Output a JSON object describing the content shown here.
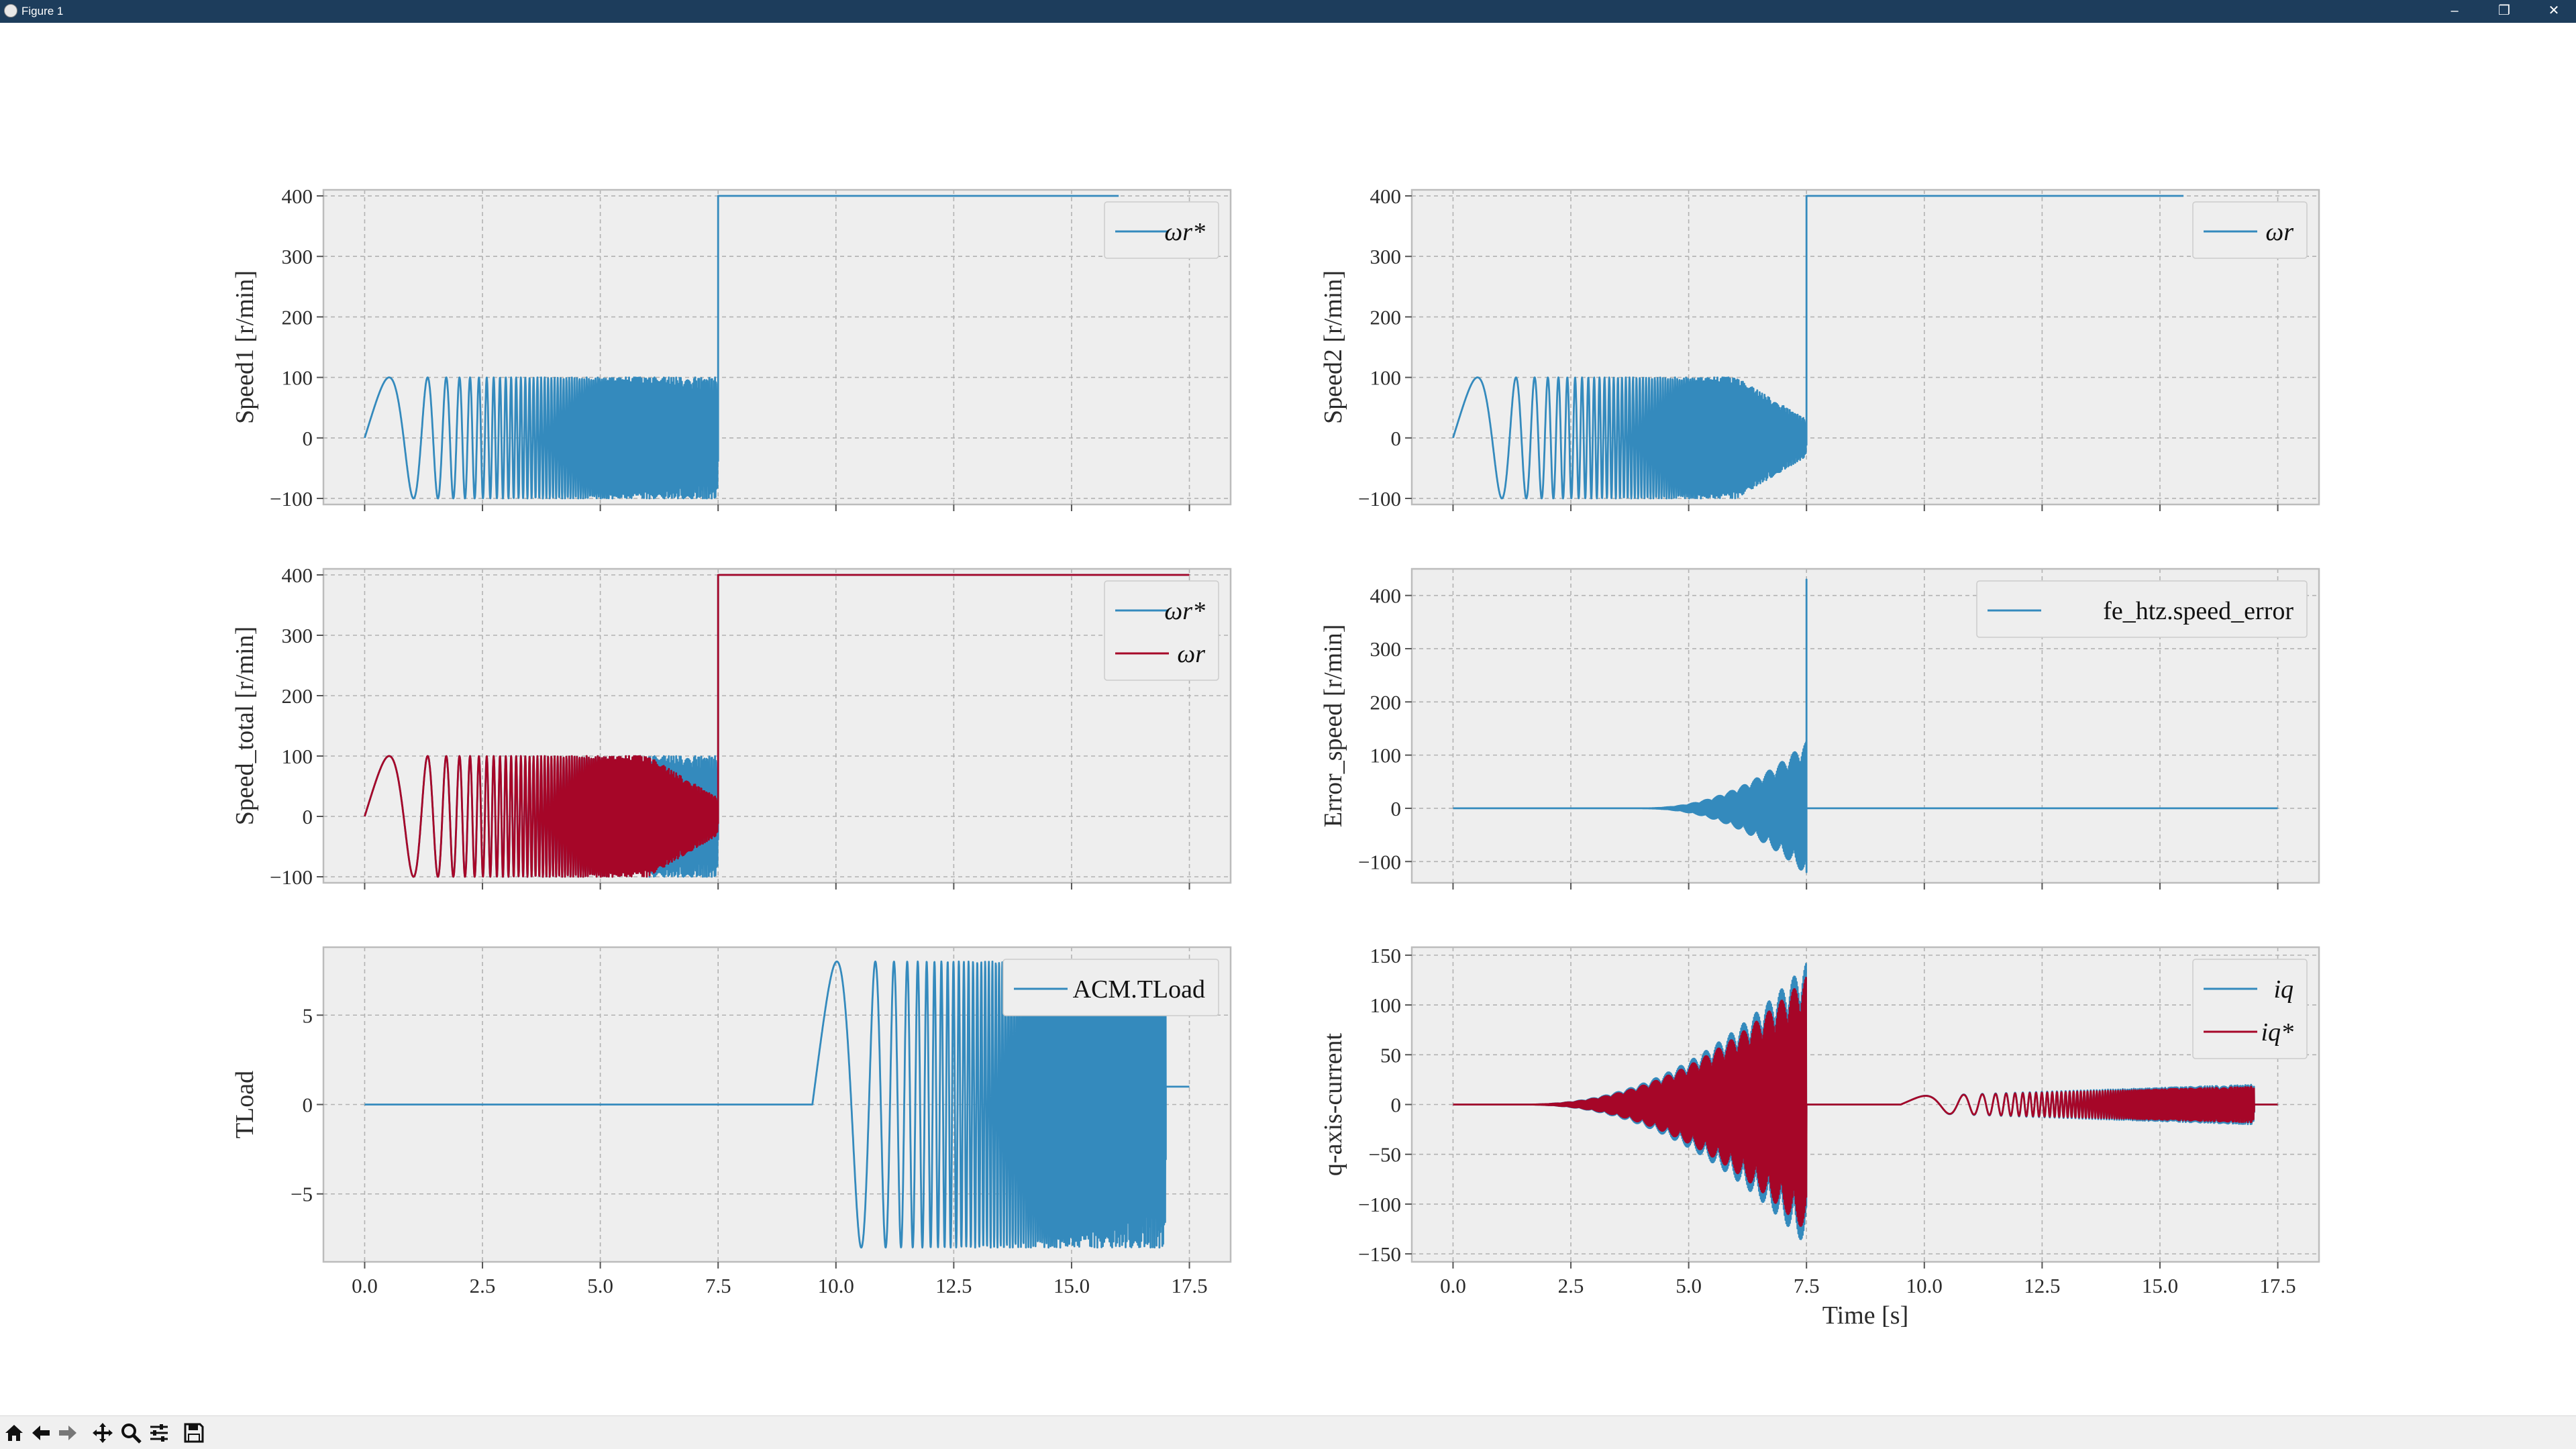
{
  "window": {
    "title": "Figure 1",
    "controls": [
      "minimize",
      "restore",
      "close"
    ]
  },
  "toolbar": {
    "buttons": [
      "home-icon",
      "back-icon",
      "forward-icon",
      "pan-icon",
      "zoom-icon",
      "configure-subplots-icon",
      "save-icon"
    ]
  },
  "colors": {
    "blue": "#348abd",
    "red": "#a60628",
    "axes_bg": "#eeeeee"
  },
  "chart_data": [
    {
      "id": "speed1",
      "type": "line",
      "title": "",
      "xlabel": "",
      "ylabel": "Speed1 [r/min]",
      "xlim": [
        -0.875,
        18.375
      ],
      "ylim": [
        -110,
        410
      ],
      "xticks": [
        0.0,
        2.5,
        5.0,
        7.5,
        10.0,
        12.5,
        15.0,
        17.5
      ],
      "xticklabels_visible": false,
      "yticks": [
        -100,
        0,
        100,
        200,
        300,
        400
      ],
      "yticklabels": [
        "−100",
        "0",
        "100",
        "200",
        "300",
        "400"
      ],
      "grid": true,
      "legend_position": "top-right",
      "series": [
        {
          "name": "ωr*",
          "color": "#348abd",
          "segments": [
            {
              "kind": "chirp",
              "t0": 0.0,
              "t1": 7.5,
              "amp": 100,
              "offset": 0,
              "f0": 0.4,
              "k": 0.6
            },
            {
              "kind": "step",
              "at": 7.5,
              "value": 400,
              "t1": 16.0
            }
          ]
        }
      ]
    },
    {
      "id": "speed2",
      "type": "line",
      "title": "",
      "xlabel": "",
      "ylabel": "Speed2 [r/min]",
      "xlim": [
        -0.875,
        18.375
      ],
      "ylim": [
        -110,
        410
      ],
      "xticks": [
        0.0,
        2.5,
        5.0,
        7.5,
        10.0,
        12.5,
        15.0,
        17.5
      ],
      "xticklabels_visible": false,
      "yticks": [
        -100,
        0,
        100,
        200,
        300,
        400
      ],
      "yticklabels": [
        "−100",
        "0",
        "100",
        "200",
        "300",
        "400"
      ],
      "grid": true,
      "legend_position": "top-right",
      "series": [
        {
          "name": "ωr",
          "color": "#348abd",
          "segments": [
            {
              "kind": "chirp-decay",
              "t0": 0.0,
              "t1": 7.5,
              "amp": 100,
              "offset": 0,
              "f0": 0.4,
              "k": 0.6,
              "decay_start": 6.0,
              "amp_end": 30
            },
            {
              "kind": "step",
              "at": 7.5,
              "value": 400,
              "t1": 15.5
            }
          ]
        }
      ]
    },
    {
      "id": "speed_total",
      "type": "line",
      "title": "",
      "xlabel": "",
      "ylabel": "Speed_total [r/min]",
      "xlim": [
        -0.875,
        18.375
      ],
      "ylim": [
        -110,
        410
      ],
      "xticks": [
        0.0,
        2.5,
        5.0,
        7.5,
        10.0,
        12.5,
        15.0,
        17.5
      ],
      "xticklabels_visible": false,
      "yticks": [
        -100,
        0,
        100,
        200,
        300,
        400
      ],
      "yticklabels": [
        "−100",
        "0",
        "100",
        "200",
        "300",
        "400"
      ],
      "grid": true,
      "legend_position": "top-right",
      "series": [
        {
          "name": "ωr*",
          "color": "#348abd",
          "segments": [
            {
              "kind": "chirp",
              "t0": 0.0,
              "t1": 7.5,
              "amp": 100,
              "offset": 0,
              "f0": 0.4,
              "k": 0.6
            },
            {
              "kind": "step",
              "at": 7.5,
              "value": 400,
              "t1": 17.5
            }
          ]
        },
        {
          "name": "ωr",
          "color": "#a60628",
          "segments": [
            {
              "kind": "chirp-decay",
              "t0": 0.0,
              "t1": 7.5,
              "amp": 100,
              "offset": 0,
              "f0": 0.4,
              "k": 0.6,
              "decay_start": 6.0,
              "amp_end": 30
            },
            {
              "kind": "step",
              "at": 7.5,
              "value": 400,
              "t1": 17.5
            }
          ]
        }
      ]
    },
    {
      "id": "error_speed",
      "type": "line",
      "title": "",
      "xlabel": "",
      "ylabel": "Error_speed [r/min]",
      "xlim": [
        -0.875,
        18.375
      ],
      "ylim": [
        -140,
        450
      ],
      "xticks": [
        0.0,
        2.5,
        5.0,
        7.5,
        10.0,
        12.5,
        15.0,
        17.5
      ],
      "xticklabels_visible": false,
      "yticks": [
        -100,
        0,
        100,
        200,
        300,
        400
      ],
      "yticklabels": [
        "−100",
        "0",
        "100",
        "200",
        "300",
        "400"
      ],
      "grid": true,
      "legend_position": "top-right",
      "series": [
        {
          "name": "fe_htz.speed_error",
          "color": "#348abd",
          "segments": [
            {
              "kind": "grow",
              "t0": 0.0,
              "t1": 7.5,
              "amp_max": 125,
              "grow_start": 4.0,
              "f": 12
            },
            {
              "kind": "spike",
              "at": 7.5,
              "from": -120,
              "to": 430
            },
            {
              "kind": "flat",
              "t0": 7.5,
              "t1": 17.5,
              "value": 0
            }
          ]
        }
      ]
    },
    {
      "id": "tload",
      "type": "line",
      "title": "",
      "xlabel": "",
      "ylabel": "TLoad",
      "xlim": [
        -0.875,
        18.375
      ],
      "ylim": [
        -8.8,
        8.8
      ],
      "xticks": [
        0.0,
        2.5,
        5.0,
        7.5,
        10.0,
        12.5,
        15.0,
        17.5
      ],
      "xticklabels": [
        "0.0",
        "2.5",
        "5.0",
        "7.5",
        "10.0",
        "12.5",
        "15.0",
        "17.5"
      ],
      "xticklabels_visible": true,
      "yticks": [
        -5,
        0,
        5
      ],
      "yticklabels": [
        "−5",
        "0",
        "5"
      ],
      "grid": true,
      "legend_position": "top-right",
      "series": [
        {
          "name": "ACM.TLoad",
          "color": "#348abd",
          "segments": [
            {
              "kind": "flat",
              "t0": 0.0,
              "t1": 9.5,
              "value": 0
            },
            {
              "kind": "chirp",
              "t0": 9.5,
              "t1": 17.0,
              "amp": 8,
              "offset": 0,
              "f0": 0.4,
              "k": 0.6
            },
            {
              "kind": "flat",
              "t0": 17.0,
              "t1": 17.5,
              "value": 1
            }
          ]
        }
      ]
    },
    {
      "id": "q_axis_current",
      "type": "line",
      "title": "",
      "xlabel": "Time [s]",
      "ylabel": "q-axis-current",
      "xlim": [
        -0.875,
        18.375
      ],
      "ylim": [
        -158,
        158
      ],
      "xticks": [
        0.0,
        2.5,
        5.0,
        7.5,
        10.0,
        12.5,
        15.0,
        17.5
      ],
      "xticklabels": [
        "0.0",
        "2.5",
        "5.0",
        "7.5",
        "10.0",
        "12.5",
        "15.0",
        "17.5"
      ],
      "xticklabels_visible": true,
      "yticks": [
        -150,
        -100,
        -50,
        0,
        50,
        100,
        150
      ],
      "yticklabels": [
        "−150",
        "−100",
        "−50",
        "0",
        "50",
        "100",
        "150"
      ],
      "grid": true,
      "legend_position": "top-right",
      "series": [
        {
          "name": "iq",
          "color": "#348abd",
          "segments": [
            {
              "kind": "grow",
              "t0": 0.0,
              "t1": 7.5,
              "amp_max": 142,
              "grow_start": 1.5,
              "f": 12
            },
            {
              "kind": "flat",
              "t0": 7.5,
              "t1": 9.5,
              "value": 0
            },
            {
              "kind": "chirp-grow",
              "t0": 9.5,
              "t1": 17.0,
              "amp0": 8,
              "amp1": 20,
              "f0": 0.4,
              "k": 0.6
            },
            {
              "kind": "flat",
              "t0": 17.0,
              "t1": 17.5,
              "value": 0
            }
          ]
        },
        {
          "name": "iq*",
          "color": "#a60628",
          "segments": [
            {
              "kind": "grow",
              "t0": 0.0,
              "t1": 7.5,
              "amp_max": 128,
              "grow_start": 1.5,
              "f": 12
            },
            {
              "kind": "flat",
              "t0": 7.5,
              "t1": 9.5,
              "value": 0
            },
            {
              "kind": "chirp-grow",
              "t0": 9.5,
              "t1": 17.0,
              "amp0": 8,
              "amp1": 18,
              "f0": 0.4,
              "k": 0.6
            },
            {
              "kind": "flat",
              "t0": 17.0,
              "t1": 17.5,
              "value": 0
            }
          ]
        }
      ]
    }
  ]
}
